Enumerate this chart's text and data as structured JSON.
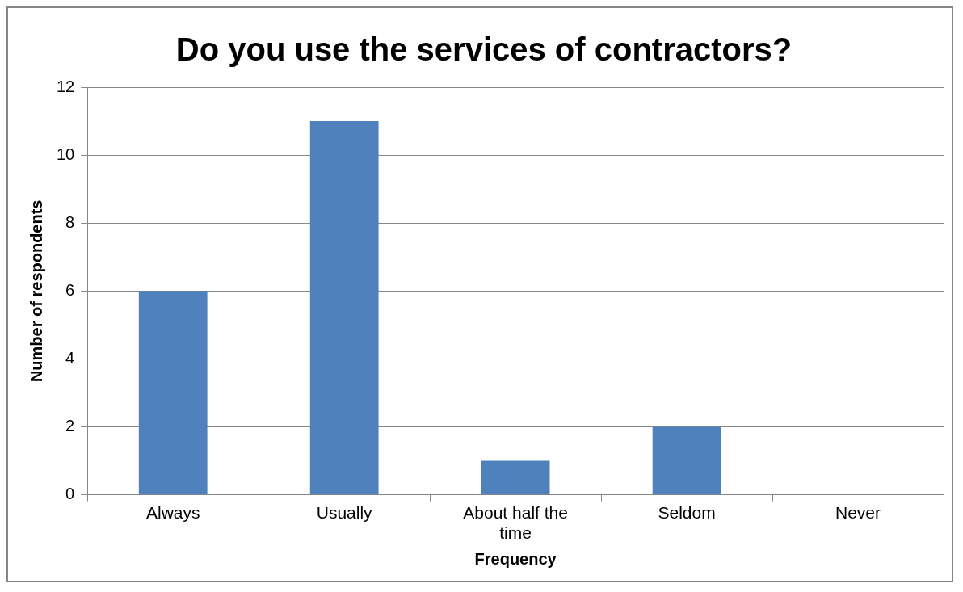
{
  "chart_data": {
    "type": "bar",
    "title": "Do you use the services of contractors?",
    "xlabel": "Frequency",
    "ylabel": "Number of respondents",
    "categories": [
      "Always",
      "Usually",
      "About half the time",
      "Seldom",
      "Never"
    ],
    "values": [
      6,
      11,
      1,
      2,
      0
    ],
    "color": "#4f81bd",
    "ylim": [
      0,
      12
    ],
    "yticks": [
      0,
      2,
      4,
      6,
      8,
      10,
      12
    ],
    "grid": "y",
    "legend": false
  }
}
